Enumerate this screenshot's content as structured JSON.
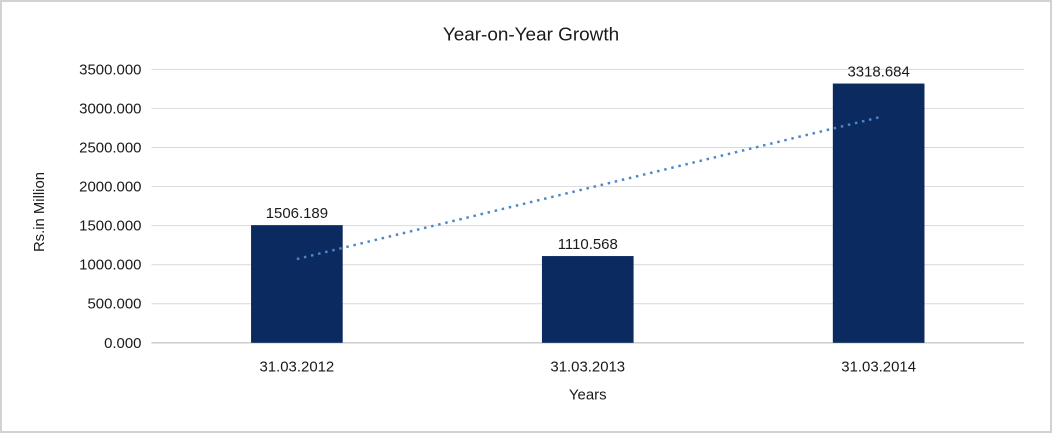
{
  "window": {
    "background": "#ffffff",
    "border_color": "#d2d2d2"
  },
  "chart_data": {
    "type": "bar",
    "title": "Year-on-Year Growth",
    "xlabel": "Years",
    "ylabel": "Rs.in Million",
    "categories": [
      "31.03.2012",
      "31.03.2013",
      "31.03.2014"
    ],
    "values": [
      1506.189,
      1110.568,
      3318.684
    ],
    "data_labels": [
      "1506.189",
      "1110.568",
      "3318.684"
    ],
    "ylim": [
      0,
      3500
    ],
    "ytick_step": 500,
    "ytick_labels": [
      "0.000",
      "500.000",
      "1000.000",
      "1500.000",
      "2000.000",
      "2500.000",
      "3000.000",
      "3500.000"
    ],
    "grid": true,
    "legend": false,
    "trendline": {
      "type": "linear",
      "style": "dotted"
    },
    "colors": {
      "bar": "#0b2a60",
      "trendline": "#4e86c8",
      "gridline": "#d9d9d9",
      "axis_line": "#c8c8c8",
      "text": "#1a1a1a"
    }
  }
}
